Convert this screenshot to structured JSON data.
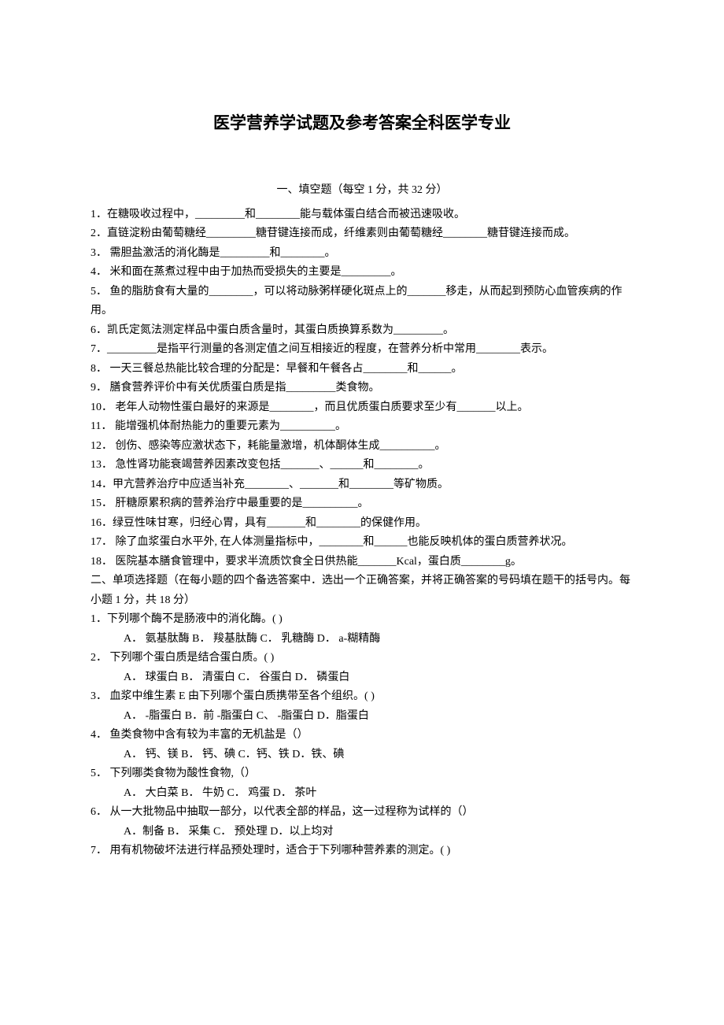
{
  "title": "医学营养学试题及参考答案全科医学专业",
  "section1_header": "一、填空题（每空 1 分，共 32 分）",
  "fill_blanks": {
    "q1": "1．在糖吸收过程中，_________和________能与载体蛋白结合而被迅速吸收。",
    "q2": "2．直链淀粉由葡萄糖经_________糖苷键连接而成，纤维素则由葡萄糖经________糖苷键连接而成。",
    "q3": "3．  需胆盐激活的消化酶是_________和________。",
    "q4": "4．  米和面在蒸煮过程中由于加热而受损失的主要是_________。",
    "q5": "5．  鱼的脂肪食有大量的________，可以将动脉粥样硬化斑点上的_______移走，从而起到预防心血管疾病的作用。",
    "q6": "6．凯氏定氮法测定样品中蛋白质含量时，其蛋白质换算系数为_________。",
    "q7": "7．_________是指平行测量的各测定值之间互相接近的程度，在营养分析中常用________表示。",
    "q8": "8．  一天三餐总热能比较合理的分配是：早餐和午餐各占________和______。",
    "q9": "9．  膳食营养评价中有关优质蛋白质是指_________类食物。",
    "q10": "10．  老年人动物性蛋白最好的来源是________，而且优质蛋白质要求至少有_______以上。",
    "q11": "11．  能增强机体耐热能力的重要元素为__________。",
    "q12": "12．  创伤、感染等应激状态下，耗能量激增，机体酮体生成__________。",
    "q13": "13．  急性肾功能衰竭营养因素改变包括_______、______和________。",
    "q14": "14．甲亢营养治疗中应适当补充________、_______和________等矿物质。",
    "q15": "15．  肝糖原累积病的营养治疗中最重要的是__________。",
    "q16": "16．绿豆性味甘寒，归经心胃，具有_______和________的保健作用。",
    "q17": "17．  除了血浆蛋白水平外, 在人体测量指标中，________和______也能反映机体的蛋白质营养状况。",
    "q18": "18．  医院基本膳食管理中，要求半流质饮食全日供热能_______Kcal，蛋白质________g。"
  },
  "section2_header": "二、单项选择题（在每小题的四个备选答案中．选出一个正确答案，并将正确答案的号码填在题干的括号内。每小题 1 分，共 18 分）",
  "multiple_choice": {
    "q1": {
      "text": "1．下列哪个酶不是肠液中的消化酶。(  )",
      "options": "A．  氨基肽酶    B．  羧基肽酶    C．  乳糖酶    D．  a-糊精酶"
    },
    "q2": {
      "text": "2．  下列哪个蛋白质是结合蛋白质。(  )",
      "options": "A．  球蛋白    B．  清蛋白    C．  谷蛋白    D．  磷蛋白"
    },
    "q3": {
      "text": "3．  血浆中维生素 E 由下列哪个蛋白质携带至各个组织。(  )",
      "options": "A．    -脂蛋白    B．前  -脂蛋白    C、   -脂蛋白    D．脂蛋白"
    },
    "q4": {
      "text": "4．  鱼类食物中含有较为丰富的无机盐是（）",
      "options": "A．  钙、镁    B．  钙、碘    C．钙、铁    D．铁、碘"
    },
    "q5": {
      "text": "5．  下列哪类食物为酸性食物,（）",
      "options": "A．  大白菜      B．  牛奶    C．  鸡蛋    D．  茶叶"
    },
    "q6": {
      "text": "6．  从一大批物品中抽取一部分，以代表全部的样品，这一过程称为试样的（）",
      "options": "A．制备    B．  采集    C．  预处理    D．以上均对"
    },
    "q7": {
      "text": "7．  用有机物破坏法进行样品预处理时，适合于下列哪种营养素的测定。(  )",
      "options": ""
    }
  },
  "colors": {
    "background": "#ffffff",
    "text": "#000000"
  },
  "typography": {
    "title_fontsize": 21,
    "body_fontsize": 14,
    "font_family": "SimSun"
  }
}
